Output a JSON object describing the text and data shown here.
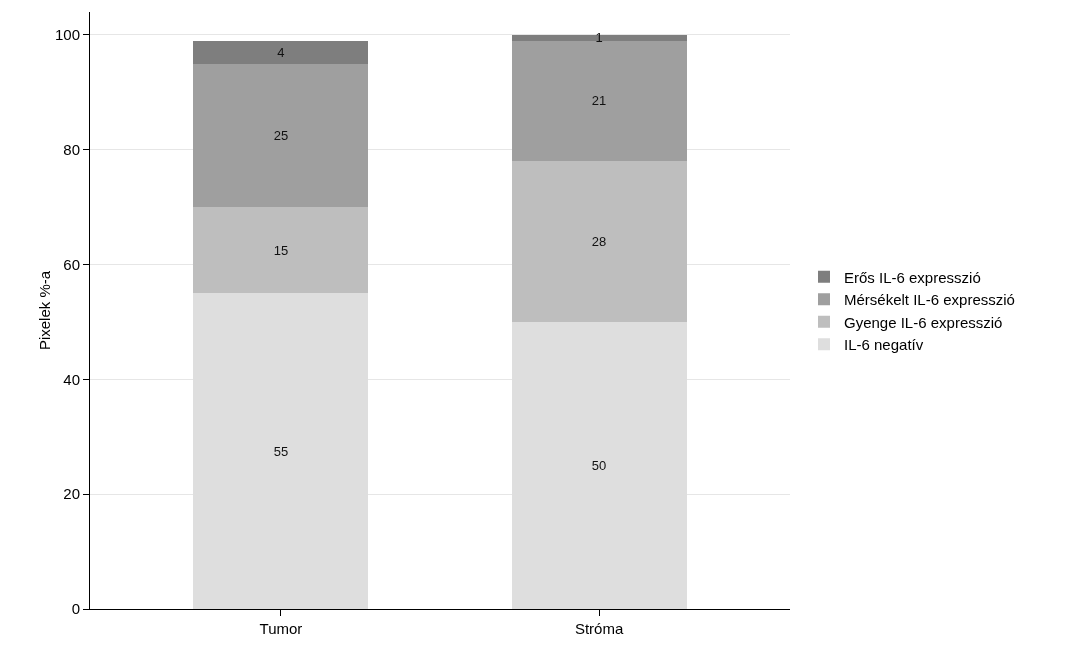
{
  "chart_data": {
    "type": "bar",
    "stacked": true,
    "ylabel": "Pixelek %-a",
    "categories": [
      "Tumor",
      "Stróma"
    ],
    "series": [
      {
        "name": "IL-6 negatív",
        "color": "#dedede",
        "values": [
          55,
          50
        ]
      },
      {
        "name": "Gyenge IL-6 expresszió",
        "color": "#bebebe",
        "values": [
          15,
          28
        ]
      },
      {
        "name": "Mérsékelt IL-6 expresszió",
        "color": "#9f9f9f",
        "values": [
          25,
          21
        ]
      },
      {
        "name": "Erős IL-6 expresszió",
        "color": "#7e7e7e",
        "values": [
          4,
          1
        ]
      }
    ],
    "data_labels": true,
    "ylim": [
      0,
      104
    ],
    "yticks": [
      0,
      20,
      40,
      60,
      80,
      100
    ],
    "grid": "y",
    "legend": "right"
  }
}
